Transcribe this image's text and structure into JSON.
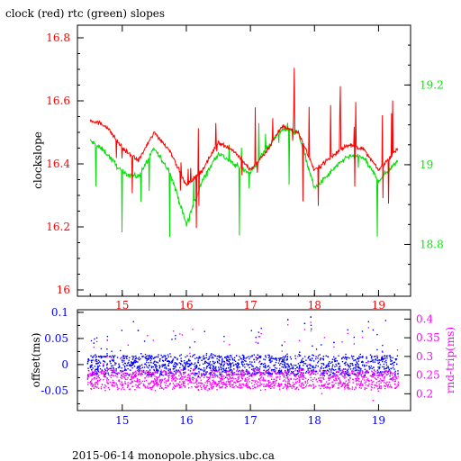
{
  "chart_data": [
    {
      "type": "line",
      "title": "clock (red) rtc (green) slopes",
      "xlabel": "",
      "ylabel": "clockslope",
      "xlim": [
        14.3,
        19.5
      ],
      "x_ticks": [
        "15",
        "16",
        "17",
        "18",
        "19"
      ],
      "ylim_left": [
        15.98,
        16.84
      ],
      "yticks_left": [
        "16",
        "16.2",
        "16.4",
        "16.6",
        "16.8"
      ],
      "ylim_right": [
        18.67,
        19.35
      ],
      "yticks_right": [
        "18.8",
        "19",
        "19.2"
      ],
      "series": [
        {
          "name": "clock",
          "color": "#ff0000",
          "axis": "left",
          "x": [
            14.5,
            14.75,
            15.0,
            15.25,
            15.5,
            15.75,
            16.0,
            16.25,
            16.5,
            16.75,
            17.0,
            17.25,
            17.5,
            17.75,
            18.0,
            18.25,
            18.5,
            18.75,
            19.0,
            19.3
          ],
          "y": [
            16.54,
            16.52,
            16.45,
            16.41,
            16.5,
            16.44,
            16.33,
            16.38,
            16.47,
            16.44,
            16.38,
            16.44,
            16.52,
            16.5,
            16.38,
            16.42,
            16.46,
            16.45,
            16.38,
            16.45
          ]
        },
        {
          "name": "rtc",
          "color": "#00dd00",
          "axis": "right",
          "x": [
            14.5,
            14.75,
            15.0,
            15.25,
            15.5,
            15.75,
            16.0,
            16.25,
            16.5,
            16.75,
            17.0,
            17.25,
            17.5,
            17.75,
            18.0,
            18.25,
            18.5,
            18.75,
            19.0,
            19.3
          ],
          "y": [
            19.06,
            19.03,
            18.98,
            18.97,
            19.04,
            18.98,
            18.85,
            18.96,
            19.03,
            19.0,
            18.98,
            19.04,
            19.09,
            19.08,
            18.94,
            18.98,
            19.02,
            19.02,
            18.96,
            19.01
          ]
        }
      ]
    },
    {
      "type": "scatter",
      "title": "",
      "xlabel": "",
      "ylabel_left": "offset(ms)",
      "ylabel_right": "rnd-trip(ms)",
      "xlim": [
        14.3,
        19.5
      ],
      "x_ticks": [
        "15",
        "16",
        "17",
        "18",
        "19"
      ],
      "ylim_left": [
        -0.088,
        0.105
      ],
      "yticks_left": [
        "-0.05",
        "0",
        "0.05",
        "0.1"
      ],
      "ylim_right": [
        0.155,
        0.425
      ],
      "yticks_right": [
        "0.2",
        "0.25",
        "0.3",
        "0.35",
        "0.4"
      ],
      "series": [
        {
          "name": "offset",
          "color": "#0000ff",
          "axis": "left",
          "band": [
            -0.02,
            0.02
          ]
        },
        {
          "name": "rnd-trip",
          "color": "#ff00ff",
          "axis": "right",
          "band": [
            0.215,
            0.265
          ]
        }
      ]
    }
  ],
  "footer": "2015-06-14 monopole.physics.ubc.ca"
}
